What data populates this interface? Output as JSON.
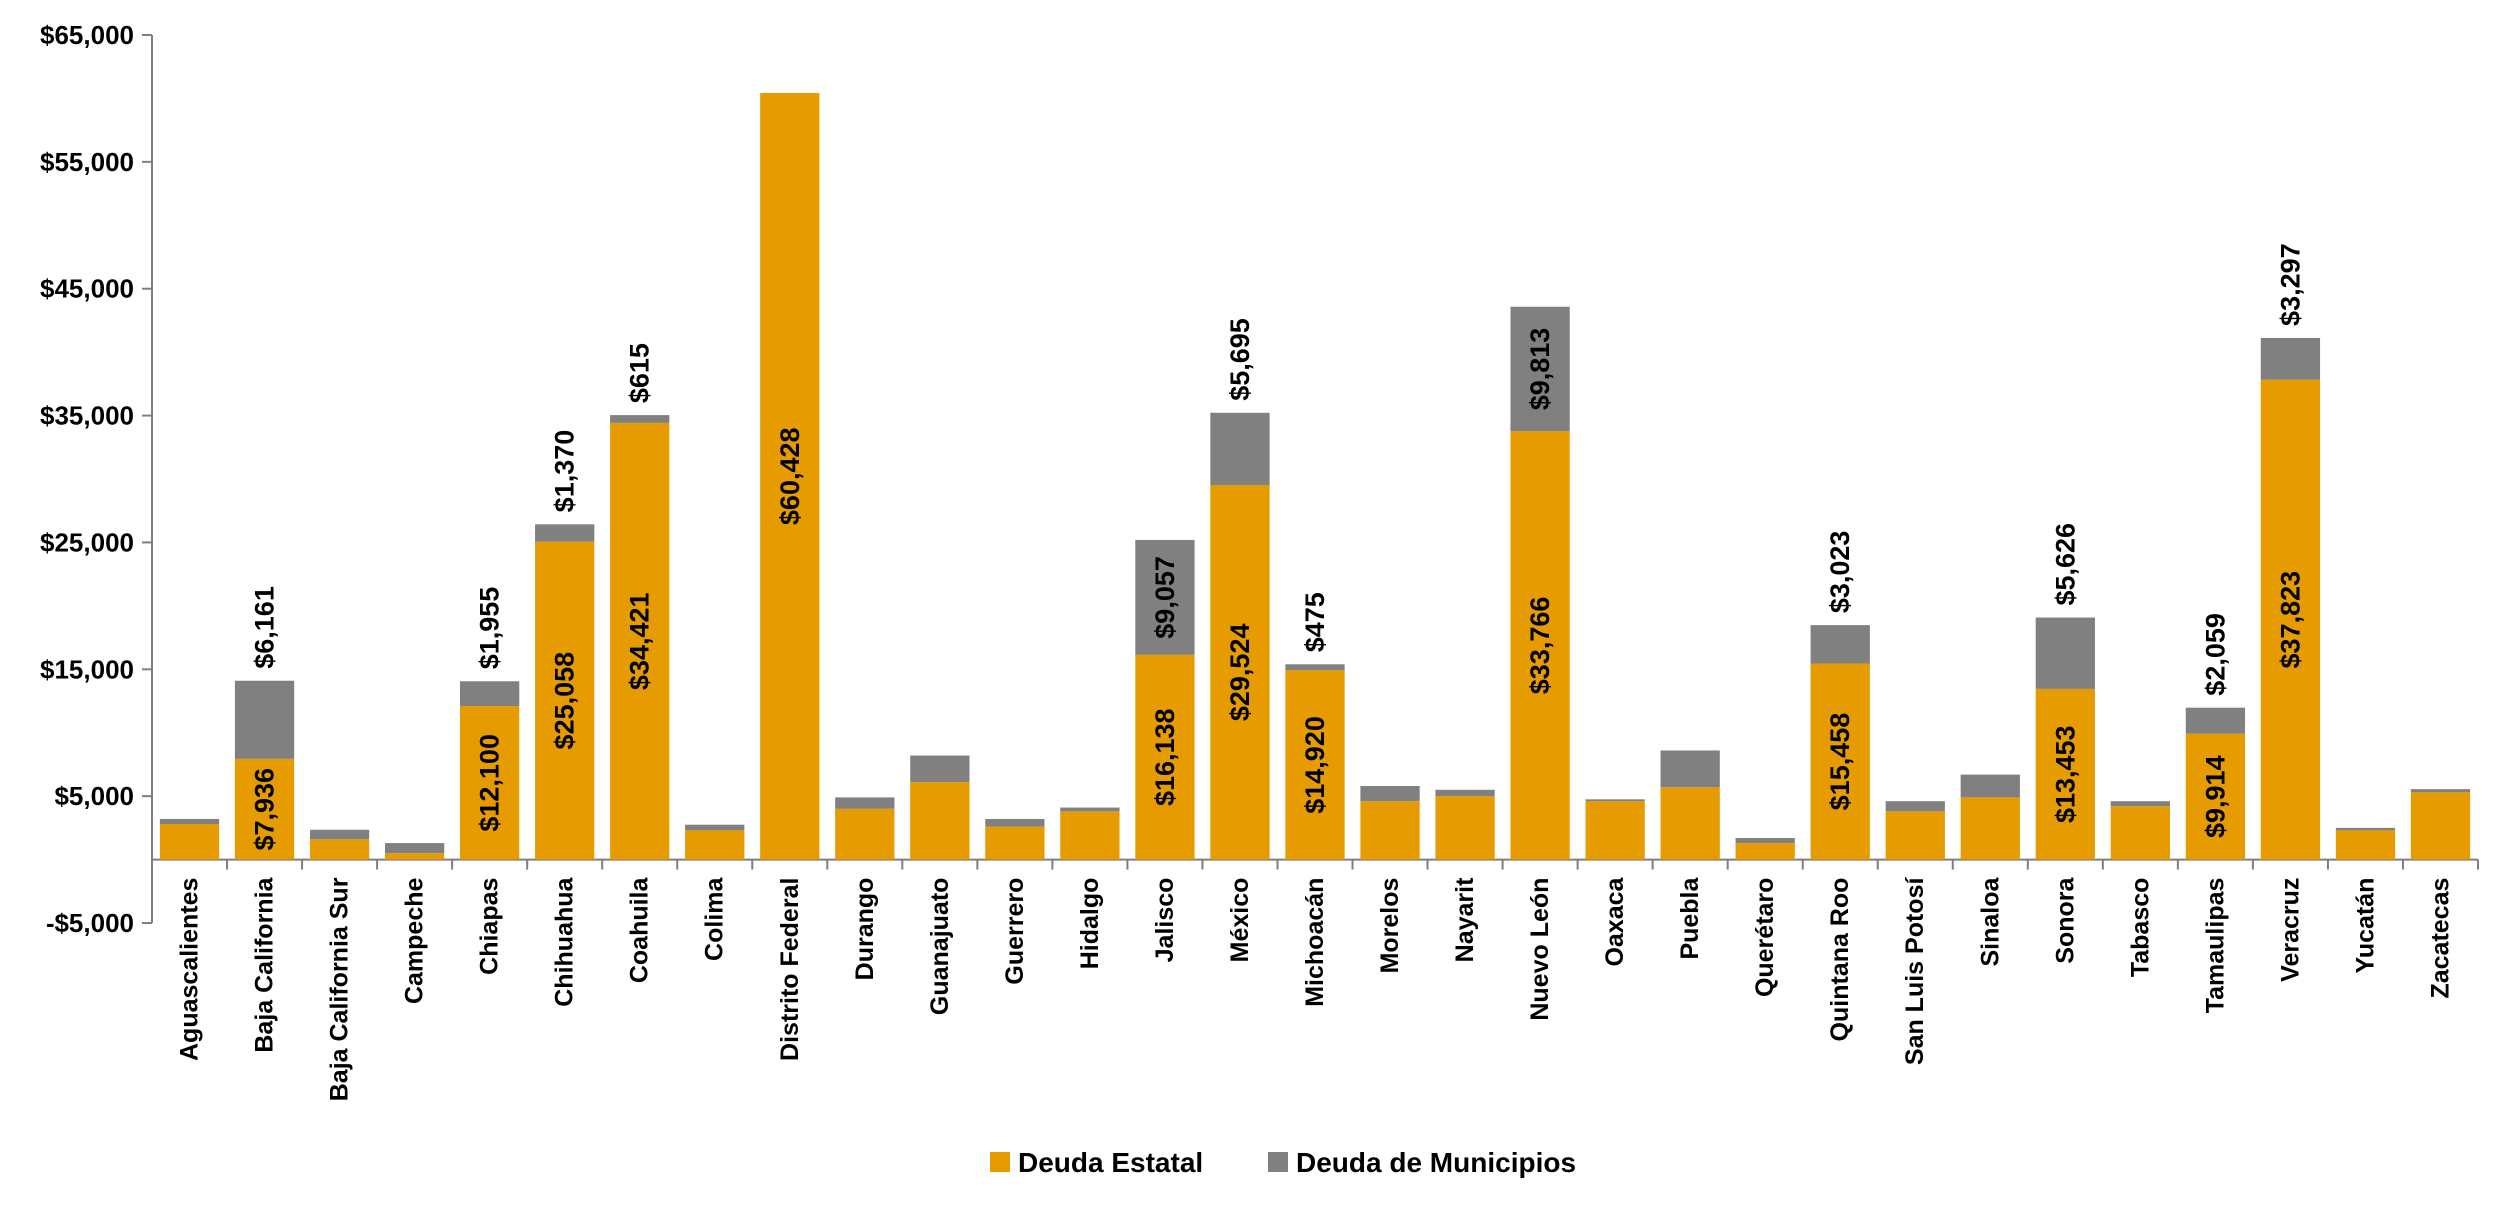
{
  "chart_data": {
    "type": "bar",
    "stacked": true,
    "categories": [
      "Aguascalientes",
      "Baja California",
      "Baja California Sur",
      "Campeche",
      "Chiapas",
      "Chihuahua",
      "Coahuila",
      "Colima",
      "Distrito Federal",
      "Durango",
      "Guanajuato",
      "Guerrero",
      "Hidalgo",
      "Jalisco",
      "México",
      "Michoacán",
      "Morelos",
      "Nayarit",
      "Nuevo León",
      "Oaxaca",
      "Puebla",
      "Querétaro",
      "Quintana Roo",
      "San Luis Potosí",
      "Sinaloa",
      "Sonora",
      "Tabasco",
      "Tamaulipas",
      "Veracruz",
      "Yucatán",
      "Zacatecas"
    ],
    "series": [
      {
        "name": "Deuda Estatal",
        "color": "#E69C00",
        "values": [
          2800,
          7936,
          1600,
          500,
          12100,
          25058,
          34421,
          2300,
          60428,
          4000,
          6100,
          2600,
          3800,
          16138,
          29524,
          14920,
          4600,
          5000,
          33766,
          4600,
          5700,
          1300,
          15458,
          3800,
          4900,
          13453,
          4200,
          9914,
          37823,
          2300,
          5300
        ],
        "labels": [
          null,
          "$7,936",
          null,
          null,
          "$12,100",
          "$25,058",
          "$34,421",
          null,
          "$60,428",
          null,
          null,
          null,
          null,
          "$16,138",
          "$29,524",
          "$14,920",
          null,
          null,
          "$33,766",
          null,
          null,
          null,
          "$15,458",
          null,
          null,
          "$13,453",
          null,
          "$9,914",
          "$37,823",
          null,
          null
        ]
      },
      {
        "name": "Deuda de Municipios",
        "color": "#808080",
        "values": [
          400,
          6161,
          750,
          800,
          1955,
          1370,
          615,
          450,
          0,
          900,
          2100,
          600,
          300,
          9057,
          5695,
          475,
          1200,
          500,
          9813,
          150,
          2900,
          400,
          3023,
          800,
          1800,
          5626,
          400,
          2059,
          3297,
          200,
          250
        ],
        "labels": [
          null,
          "$6,161",
          null,
          null,
          "$1,955",
          "$1,370",
          "$615",
          null,
          null,
          null,
          null,
          null,
          null,
          "$9,057",
          "$5,695",
          "$475",
          null,
          null,
          "$9,813",
          null,
          null,
          null,
          "$3,023",
          null,
          null,
          "$5,626",
          null,
          "$2,059",
          "$3,297",
          null,
          null
        ]
      }
    ],
    "ylim": [
      -5000,
      65000
    ],
    "yticks": [
      -5000,
      5000,
      15000,
      25000,
      35000,
      45000,
      55000,
      65000
    ],
    "ytick_labels": [
      "-$5,000",
      "$5,000",
      "$15,000",
      "$25,000",
      "$35,000",
      "$45,000",
      "$55,000",
      "$65,000"
    ],
    "grid": false,
    "legend_position": "bottom"
  }
}
